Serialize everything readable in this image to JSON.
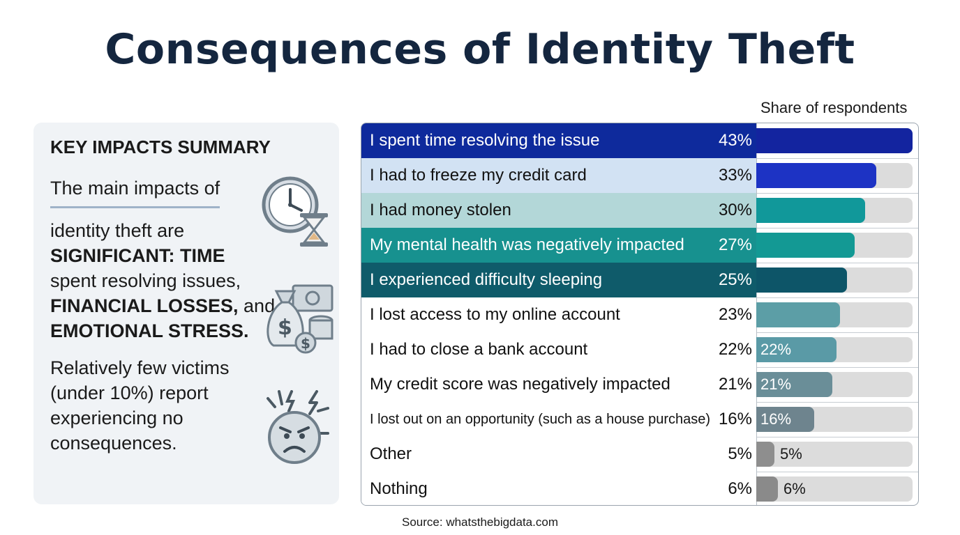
{
  "title": "Consequences of Identity Theft",
  "panel": {
    "heading": "KEY IMPACTS SUMMARY",
    "line1": "The main impacts of",
    "line2_pre": "identity theft are",
    "bold1": "SIGNIFICANT: TIME",
    "text1": "spent resolving issues,",
    "bold2": "FINANCIAL LOSSES,",
    "text2": " and",
    "bold3": "EMOTIONAL STRESS.",
    "para2": "Relatively few victims (under 10%) report experiencing no consequences.",
    "icons": [
      "clock-hourglass-icon",
      "money-bag-icon",
      "stressed-face-icon"
    ]
  },
  "chart_data": {
    "type": "bar",
    "orientation": "horizontal",
    "column_header": "Share of respondents",
    "categories": [
      "I spent time resolving the issue",
      "I had to freeze my credit card",
      "I had money stolen",
      "My mental health was negatively impacted",
      "I experienced difficulty sleeping",
      "I lost access to my online account",
      "I had to close a bank account",
      "My credit score was negatively impacted",
      "I lost out on an opportunity (such as a house purchase)",
      "Other",
      "Nothing"
    ],
    "values": [
      43,
      33,
      30,
      27,
      25,
      23,
      22,
      21,
      16,
      5,
      6
    ],
    "value_labels": [
      "43%",
      "33%",
      "30%",
      "27%",
      "25%",
      "23%",
      "22%",
      "21%",
      "16%",
      "5%",
      "6%"
    ],
    "bar_labels": [
      "",
      "",
      "",
      "",
      "",
      "",
      "22%",
      "21%",
      "16%",
      "5%",
      "6%"
    ],
    "xlim": [
      0,
      43
    ],
    "unit": "%",
    "row_colors": [
      "#0e2a9c",
      "#d2e2f3",
      "#b3d7d8",
      "#17918f",
      "#0f5b6a",
      "#ffffff",
      "#ffffff",
      "#ffffff",
      "#ffffff",
      "#ffffff",
      "#ffffff"
    ],
    "text_colors": [
      "#ffffff",
      "#111111",
      "#111111",
      "#ffffff",
      "#ffffff",
      "#111111",
      "#111111",
      "#111111",
      "#111111",
      "#111111",
      "#111111"
    ],
    "bar_colors": [
      "#13249f",
      "#1d33c4",
      "#11989a",
      "#139994",
      "#0d5568",
      "#5c9ea6",
      "#5a9aa6",
      "#6a8e98",
      "#6e848e",
      "#8e8e8e",
      "#8a8a8a"
    ],
    "source": "Source: whatsthebigdata.com"
  }
}
